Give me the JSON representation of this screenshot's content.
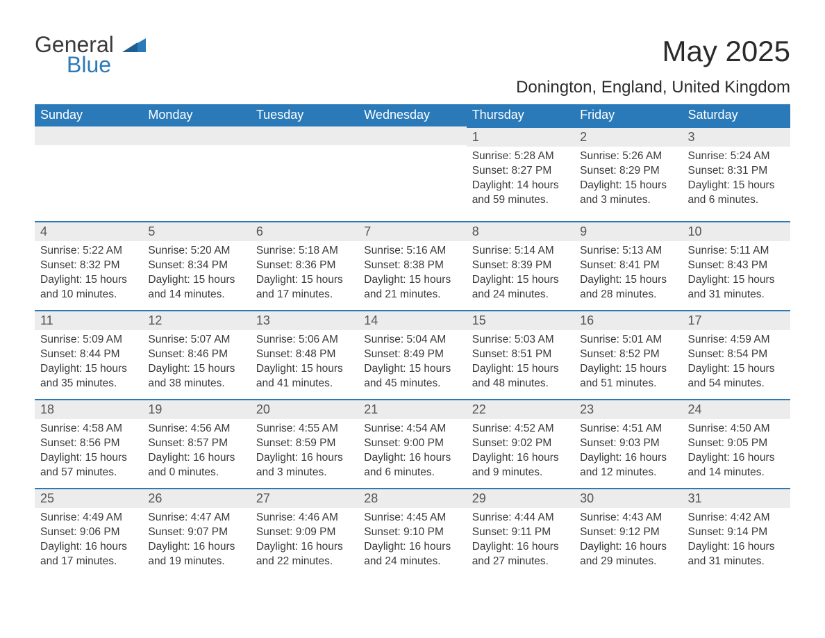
{
  "logo": {
    "word1": "General",
    "word2": "Blue",
    "shape_color": "#2a7ab9"
  },
  "header": {
    "month": "May 2025",
    "location": "Donington, England, United Kingdom"
  },
  "colors": {
    "header_bg": "#2a7ab9",
    "header_text": "#ffffff",
    "daynum_bg": "#ececec",
    "daynum_border": "#2a7ab9",
    "body_text": "#3a3a3a"
  },
  "weekdays": [
    "Sunday",
    "Monday",
    "Tuesday",
    "Wednesday",
    "Thursday",
    "Friday",
    "Saturday"
  ],
  "weeks": [
    [
      null,
      null,
      null,
      null,
      {
        "n": "1",
        "sunrise": "5:28 AM",
        "sunset": "8:27 PM",
        "daylight": "14 hours and 59 minutes."
      },
      {
        "n": "2",
        "sunrise": "5:26 AM",
        "sunset": "8:29 PM",
        "daylight": "15 hours and 3 minutes."
      },
      {
        "n": "3",
        "sunrise": "5:24 AM",
        "sunset": "8:31 PM",
        "daylight": "15 hours and 6 minutes."
      }
    ],
    [
      {
        "n": "4",
        "sunrise": "5:22 AM",
        "sunset": "8:32 PM",
        "daylight": "15 hours and 10 minutes."
      },
      {
        "n": "5",
        "sunrise": "5:20 AM",
        "sunset": "8:34 PM",
        "daylight": "15 hours and 14 minutes."
      },
      {
        "n": "6",
        "sunrise": "5:18 AM",
        "sunset": "8:36 PM",
        "daylight": "15 hours and 17 minutes."
      },
      {
        "n": "7",
        "sunrise": "5:16 AM",
        "sunset": "8:38 PM",
        "daylight": "15 hours and 21 minutes."
      },
      {
        "n": "8",
        "sunrise": "5:14 AM",
        "sunset": "8:39 PM",
        "daylight": "15 hours and 24 minutes."
      },
      {
        "n": "9",
        "sunrise": "5:13 AM",
        "sunset": "8:41 PM",
        "daylight": "15 hours and 28 minutes."
      },
      {
        "n": "10",
        "sunrise": "5:11 AM",
        "sunset": "8:43 PM",
        "daylight": "15 hours and 31 minutes."
      }
    ],
    [
      {
        "n": "11",
        "sunrise": "5:09 AM",
        "sunset": "8:44 PM",
        "daylight": "15 hours and 35 minutes."
      },
      {
        "n": "12",
        "sunrise": "5:07 AM",
        "sunset": "8:46 PM",
        "daylight": "15 hours and 38 minutes."
      },
      {
        "n": "13",
        "sunrise": "5:06 AM",
        "sunset": "8:48 PM",
        "daylight": "15 hours and 41 minutes."
      },
      {
        "n": "14",
        "sunrise": "5:04 AM",
        "sunset": "8:49 PM",
        "daylight": "15 hours and 45 minutes."
      },
      {
        "n": "15",
        "sunrise": "5:03 AM",
        "sunset": "8:51 PM",
        "daylight": "15 hours and 48 minutes."
      },
      {
        "n": "16",
        "sunrise": "5:01 AM",
        "sunset": "8:52 PM",
        "daylight": "15 hours and 51 minutes."
      },
      {
        "n": "17",
        "sunrise": "4:59 AM",
        "sunset": "8:54 PM",
        "daylight": "15 hours and 54 minutes."
      }
    ],
    [
      {
        "n": "18",
        "sunrise": "4:58 AM",
        "sunset": "8:56 PM",
        "daylight": "15 hours and 57 minutes."
      },
      {
        "n": "19",
        "sunrise": "4:56 AM",
        "sunset": "8:57 PM",
        "daylight": "16 hours and 0 minutes."
      },
      {
        "n": "20",
        "sunrise": "4:55 AM",
        "sunset": "8:59 PM",
        "daylight": "16 hours and 3 minutes."
      },
      {
        "n": "21",
        "sunrise": "4:54 AM",
        "sunset": "9:00 PM",
        "daylight": "16 hours and 6 minutes."
      },
      {
        "n": "22",
        "sunrise": "4:52 AM",
        "sunset": "9:02 PM",
        "daylight": "16 hours and 9 minutes."
      },
      {
        "n": "23",
        "sunrise": "4:51 AM",
        "sunset": "9:03 PM",
        "daylight": "16 hours and 12 minutes."
      },
      {
        "n": "24",
        "sunrise": "4:50 AM",
        "sunset": "9:05 PM",
        "daylight": "16 hours and 14 minutes."
      }
    ],
    [
      {
        "n": "25",
        "sunrise": "4:49 AM",
        "sunset": "9:06 PM",
        "daylight": "16 hours and 17 minutes."
      },
      {
        "n": "26",
        "sunrise": "4:47 AM",
        "sunset": "9:07 PM",
        "daylight": "16 hours and 19 minutes."
      },
      {
        "n": "27",
        "sunrise": "4:46 AM",
        "sunset": "9:09 PM",
        "daylight": "16 hours and 22 minutes."
      },
      {
        "n": "28",
        "sunrise": "4:45 AM",
        "sunset": "9:10 PM",
        "daylight": "16 hours and 24 minutes."
      },
      {
        "n": "29",
        "sunrise": "4:44 AM",
        "sunset": "9:11 PM",
        "daylight": "16 hours and 27 minutes."
      },
      {
        "n": "30",
        "sunrise": "4:43 AM",
        "sunset": "9:12 PM",
        "daylight": "16 hours and 29 minutes."
      },
      {
        "n": "31",
        "sunrise": "4:42 AM",
        "sunset": "9:14 PM",
        "daylight": "16 hours and 31 minutes."
      }
    ]
  ],
  "labels": {
    "sunrise": "Sunrise: ",
    "sunset": "Sunset: ",
    "daylight": "Daylight: "
  }
}
